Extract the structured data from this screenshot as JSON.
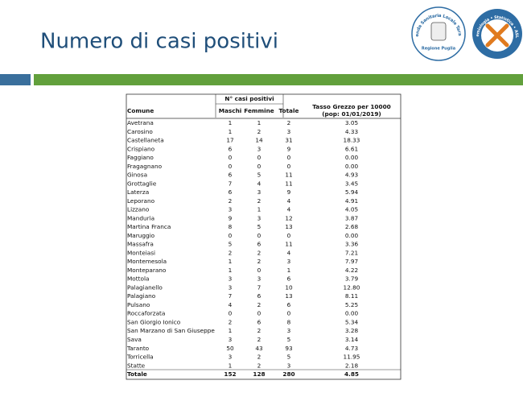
{
  "title": "Numero di casi positivi",
  "logo_left": {
    "arc_text": "Azienda Sanitaria Locale Taranto",
    "label": "Regione Puglia"
  },
  "logo_right": {
    "arc_text": "S.C. Epidemiologia • Statistica • ASL Taranto"
  },
  "table": {
    "group_header": "N° casi positivi",
    "columns": [
      "Comune",
      "Maschi",
      "Femmine",
      "Totale",
      "Tasso Grezzo per 10000",
      "(pop: 01/01/2019)"
    ],
    "rows": [
      [
        "Avetrana",
        1,
        1,
        2,
        "3.05"
      ],
      [
        "Carosino",
        1,
        2,
        3,
        "4.33"
      ],
      [
        "Castellaneta",
        17,
        14,
        31,
        "18.33"
      ],
      [
        "Crispiano",
        6,
        3,
        9,
        "6.61"
      ],
      [
        "Faggiano",
        0,
        0,
        0,
        "0.00"
      ],
      [
        "Fragagnano",
        0,
        0,
        0,
        "0.00"
      ],
      [
        "Ginosa",
        6,
        5,
        11,
        "4.93"
      ],
      [
        "Grottaglie",
        7,
        4,
        11,
        "3.45"
      ],
      [
        "Laterza",
        6,
        3,
        9,
        "5.94"
      ],
      [
        "Leporano",
        2,
        2,
        4,
        "4.91"
      ],
      [
        "Lizzano",
        3,
        1,
        4,
        "4.05"
      ],
      [
        "Manduria",
        9,
        3,
        12,
        "3.87"
      ],
      [
        "Martina Franca",
        8,
        5,
        13,
        "2.68"
      ],
      [
        "Maruggio",
        0,
        0,
        0,
        "0.00"
      ],
      [
        "Massafra",
        5,
        6,
        11,
        "3.36"
      ],
      [
        "Monteiasi",
        2,
        2,
        4,
        "7.21"
      ],
      [
        "Montemesola",
        1,
        2,
        3,
        "7.97"
      ],
      [
        "Monteparano",
        1,
        0,
        1,
        "4.22"
      ],
      [
        "Mottola",
        3,
        3,
        6,
        "3.79"
      ],
      [
        "Palagianello",
        3,
        7,
        10,
        "12.80"
      ],
      [
        "Palagiano",
        7,
        6,
        13,
        "8.11"
      ],
      [
        "Pulsano",
        4,
        2,
        6,
        "5.25"
      ],
      [
        "Roccaforzata",
        0,
        0,
        0,
        "0.00"
      ],
      [
        "San Giorgio Ionico",
        2,
        6,
        8,
        "5.34"
      ],
      [
        "San Marzano di San Giuseppe",
        1,
        2,
        3,
        "3.28"
      ],
      [
        "Sava",
        3,
        2,
        5,
        "3.14"
      ],
      [
        "Taranto",
        50,
        43,
        93,
        "4.73"
      ],
      [
        "Torricella",
        3,
        2,
        5,
        "11.95"
      ],
      [
        "Statte",
        1,
        2,
        3,
        "2.18"
      ]
    ],
    "total": [
      "Totale",
      152,
      128,
      280,
      "4.85"
    ]
  }
}
